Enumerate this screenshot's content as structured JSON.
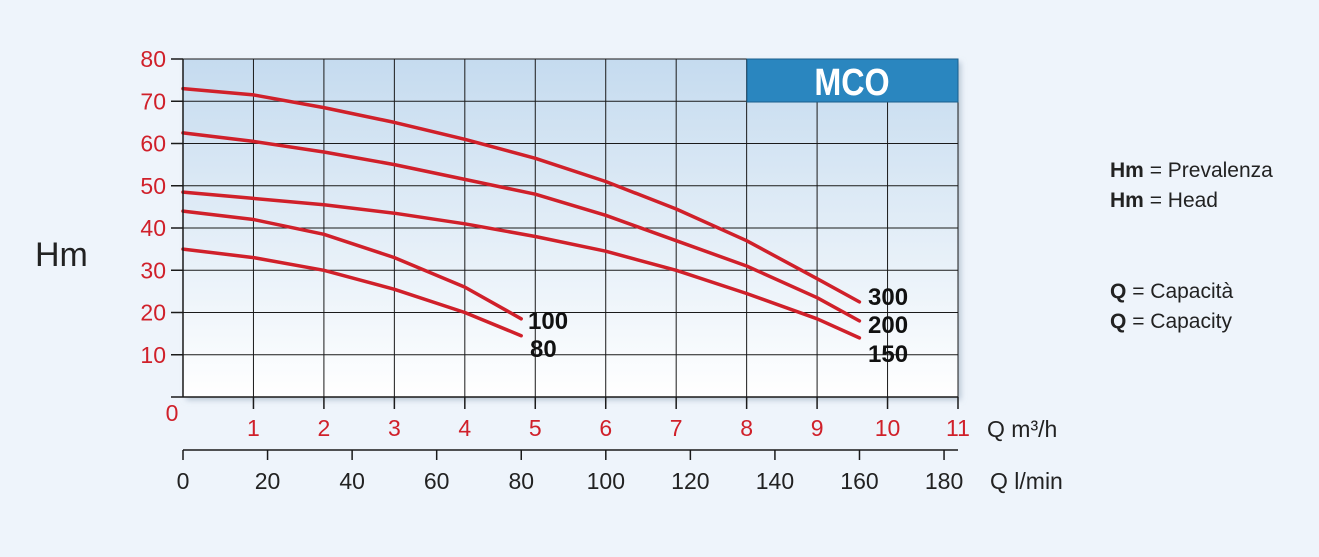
{
  "chart_data": {
    "type": "line",
    "title": "MCO",
    "ylabel": "Hm",
    "xlabel": "Q m³/h",
    "x2label": "Q l/min",
    "ylim": [
      0,
      80
    ],
    "xlim": [
      0,
      11
    ],
    "x2lim": [
      0,
      183.3
    ],
    "yticks": [
      "0",
      "10",
      "20",
      "30",
      "40",
      "50",
      "60",
      "70",
      "80"
    ],
    "xticks": [
      "1",
      "2",
      "3",
      "4",
      "5",
      "6",
      "7",
      "8",
      "9",
      "10",
      "11"
    ],
    "x2ticks": [
      "0",
      "20",
      "40",
      "60",
      "80",
      "100",
      "120",
      "140",
      "160",
      "180"
    ],
    "grid": true,
    "series": [
      {
        "name": "300",
        "x": [
          0,
          1,
          2,
          3,
          4,
          5,
          6,
          7,
          8,
          9,
          9.6
        ],
        "y": [
          73,
          71.5,
          68.5,
          65,
          61,
          56.5,
          51,
          44.5,
          37,
          28,
          22.5
        ]
      },
      {
        "name": "200",
        "x": [
          0,
          1,
          2,
          3,
          4,
          5,
          6,
          7,
          8,
          9,
          9.6
        ],
        "y": [
          62.5,
          60.5,
          58,
          55,
          51.5,
          48,
          43,
          37,
          31,
          23.5,
          18
        ]
      },
      {
        "name": "150",
        "x": [
          0,
          1,
          2,
          3,
          4,
          5,
          6,
          7,
          8,
          9,
          9.6
        ],
        "y": [
          48.5,
          47,
          45.5,
          43.5,
          41,
          38,
          34.5,
          30,
          24.5,
          18.5,
          14
        ]
      },
      {
        "name": "100",
        "x": [
          0,
          1,
          2,
          3,
          4,
          4.8
        ],
        "y": [
          44,
          42,
          38.5,
          33,
          26,
          18.5
        ]
      },
      {
        "name": "80",
        "x": [
          0,
          1,
          2,
          3,
          4,
          4.8
        ],
        "y": [
          35,
          33,
          30,
          25.5,
          20,
          14.5
        ]
      }
    ]
  },
  "legend": {
    "hm_symbol": "Hm",
    "hm_it": "= Prevalenza",
    "hm_en": "= Head",
    "q_symbol": "Q",
    "q_it": "= Capacità",
    "q_en": "= Capacity"
  },
  "colors": {
    "curve": "#d0202a",
    "axis_text_red": "#d0202a",
    "title_bg": "#2a86bf",
    "title_text": "#ffffff",
    "plot_top": "#c5dbef",
    "plot_bottom": "#ffffff",
    "background": "#eef4fb"
  }
}
